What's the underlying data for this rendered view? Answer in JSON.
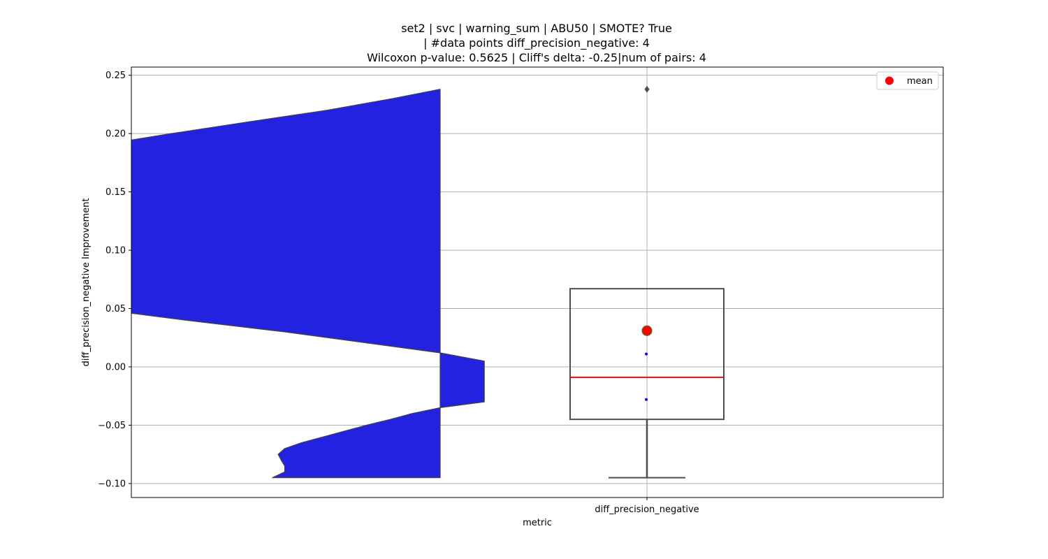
{
  "chart_data": {
    "type": "violin+box",
    "title_lines": [
      "set2 | svc | warning_sum | ABU50 | SMOTE? True",
      "| #data points diff_precision_negative: 4",
      "Wilcoxon p-value: 0.5625 | Cliff's delta: -0.25|num of pairs: 4"
    ],
    "xlabel": "metric",
    "ylabel": "diff_precision_negative Improvement",
    "categories": [
      "diff_precision_negative"
    ],
    "ylim": [
      -0.112,
      0.257
    ],
    "yticks": [
      -0.1,
      -0.05,
      0.0,
      0.05,
      0.1,
      0.15,
      0.2,
      0.25
    ],
    "ytick_labels": [
      "−0.10",
      "−0.05",
      "0.00",
      "0.05",
      "0.10",
      "0.15",
      "0.20",
      "0.25"
    ],
    "grid": true,
    "legend": {
      "position": "top-right",
      "entries": [
        {
          "label": "mean",
          "color": "#ff0000",
          "marker": "circle"
        }
      ]
    },
    "violin": {
      "color": "#2222e0",
      "edge_color": "#444444",
      "y_min": -0.095,
      "y_max": 0.238,
      "density_profile": [
        [
          -0.095,
          0.38
        ],
        [
          -0.09,
          0.352
        ],
        [
          -0.085,
          0.352
        ],
        [
          -0.08,
          0.36
        ],
        [
          -0.075,
          0.367
        ],
        [
          -0.07,
          0.352
        ],
        [
          -0.065,
          0.314
        ],
        [
          -0.06,
          0.265
        ],
        [
          -0.055,
          0.216
        ],
        [
          -0.05,
          0.167
        ],
        [
          -0.045,
          0.113
        ],
        [
          -0.04,
          0.064
        ],
        [
          -0.035,
          0.0
        ],
        [
          -0.03,
          -0.1
        ],
        [
          -0.02,
          -0.1
        ],
        [
          -0.01,
          -0.1
        ],
        [
          0.0,
          -0.1
        ],
        [
          0.005,
          -0.1
        ],
        [
          0.012,
          0.0
        ],
        [
          0.02,
          0.156
        ],
        [
          0.03,
          0.353
        ],
        [
          0.04,
          0.576
        ],
        [
          0.05,
          0.782
        ],
        [
          0.06,
          0.894
        ],
        [
          0.07,
          0.962
        ],
        [
          0.08,
          0.987
        ],
        [
          0.09,
          0.998
        ],
        [
          0.1,
          1.0
        ],
        [
          0.11,
          1.0
        ],
        [
          0.12,
          1.0
        ],
        [
          0.13,
          1.0
        ],
        [
          0.14,
          0.998
        ],
        [
          0.15,
          0.994
        ],
        [
          0.16,
          0.983
        ],
        [
          0.17,
          0.958
        ],
        [
          0.18,
          0.898
        ],
        [
          0.19,
          0.772
        ],
        [
          0.2,
          0.609
        ],
        [
          0.21,
          0.435
        ],
        [
          0.22,
          0.256
        ],
        [
          0.23,
          0.108
        ],
        [
          0.238,
          0.0
        ]
      ]
    },
    "box": {
      "whisker_low": -0.095,
      "q1": -0.045,
      "median": -0.009,
      "q3": 0.067,
      "whisker_high": 0.067,
      "outliers": [
        0.238
      ],
      "mean": 0.031,
      "points": [
        0.011,
        -0.028
      ],
      "median_color": "#ff0000",
      "edge_color": "#4d4d4d",
      "mean_color": "#ff0000",
      "points_color": "#0000ff"
    }
  }
}
